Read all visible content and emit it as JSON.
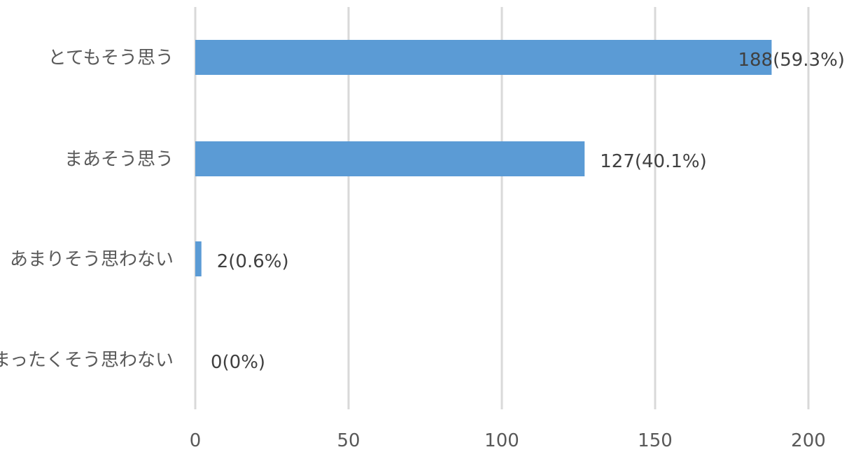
{
  "chart_data": {
    "type": "bar",
    "orientation": "horizontal",
    "categories": [
      "とてもそう思う",
      "まあそう思う",
      "あまりそう思わない",
      "まったくそう思わない"
    ],
    "values": [
      188,
      127,
      2,
      0
    ],
    "data_labels": [
      "188(59.3%)",
      "127(40.1%)",
      "2(0.6%)",
      "0(0%)"
    ],
    "x_ticks": [
      "0",
      "50",
      "100",
      "150",
      "200"
    ],
    "xlim": [
      0,
      200
    ],
    "title": "",
    "xlabel": "",
    "ylabel": "",
    "grid": "vertical",
    "legend": "none",
    "bar_color": "#5b9bd5",
    "grid_color": "#d9d9d9"
  }
}
